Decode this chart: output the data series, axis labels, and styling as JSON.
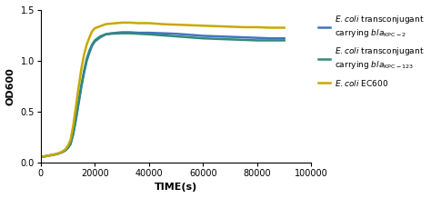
{
  "xlim": [
    0,
    100000
  ],
  "ylim": [
    0.0,
    1.5
  ],
  "xticks": [
    0,
    20000,
    40000,
    60000,
    80000,
    100000
  ],
  "yticks": [
    0.0,
    0.5,
    1.0,
    1.5
  ],
  "xlabel": "TIME(s)",
  "ylabel": "OD600",
  "color_kpc2": "#4472C4",
  "color_kpc123": "#2E8B7A",
  "color_ec600": "#C8A800",
  "line_width": 1.8,
  "figsize": [
    4.74,
    2.18
  ],
  "dpi": 100,
  "growth_x": [
    0,
    1000,
    2000,
    3000,
    4000,
    5000,
    6000,
    7000,
    8000,
    9000,
    10000,
    11000,
    12000,
    13000,
    14000,
    15000,
    16000,
    17000,
    18000,
    19000,
    20000,
    22000,
    24000,
    26000,
    28000,
    30000,
    33000,
    36000,
    40000,
    45000,
    50000,
    55000,
    60000,
    65000,
    70000,
    75000,
    80000,
    85000,
    90000
  ],
  "kpc2_y": [
    0.05,
    0.055,
    0.06,
    0.065,
    0.07,
    0.075,
    0.08,
    0.09,
    0.1,
    0.115,
    0.14,
    0.18,
    0.28,
    0.42,
    0.58,
    0.74,
    0.88,
    1.0,
    1.08,
    1.15,
    1.19,
    1.23,
    1.26,
    1.27,
    1.275,
    1.28,
    1.28,
    1.275,
    1.275,
    1.27,
    1.265,
    1.255,
    1.245,
    1.24,
    1.235,
    1.23,
    1.225,
    1.22,
    1.22
  ],
  "kpc123_y": [
    0.05,
    0.055,
    0.06,
    0.065,
    0.07,
    0.075,
    0.08,
    0.09,
    0.1,
    0.115,
    0.14,
    0.18,
    0.28,
    0.43,
    0.6,
    0.76,
    0.9,
    1.02,
    1.1,
    1.16,
    1.2,
    1.24,
    1.26,
    1.265,
    1.268,
    1.27,
    1.27,
    1.265,
    1.26,
    1.25,
    1.24,
    1.23,
    1.22,
    1.215,
    1.21,
    1.205,
    1.2,
    1.2,
    1.2
  ],
  "ec600_y": [
    0.05,
    0.055,
    0.06,
    0.065,
    0.07,
    0.076,
    0.082,
    0.092,
    0.105,
    0.125,
    0.16,
    0.22,
    0.36,
    0.55,
    0.74,
    0.92,
    1.06,
    1.16,
    1.23,
    1.29,
    1.32,
    1.34,
    1.36,
    1.365,
    1.37,
    1.375,
    1.375,
    1.37,
    1.37,
    1.36,
    1.355,
    1.35,
    1.345,
    1.34,
    1.335,
    1.33,
    1.33,
    1.325,
    1.325
  ]
}
